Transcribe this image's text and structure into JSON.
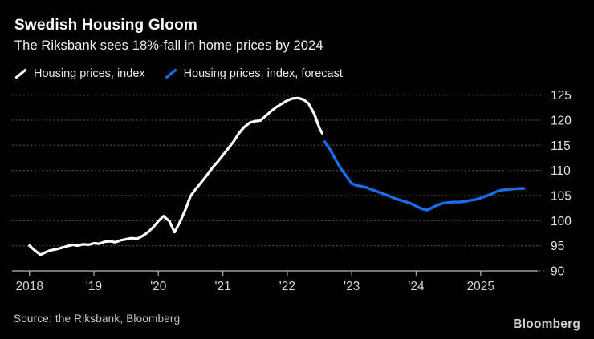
{
  "header": {
    "title": "Swedish Housing Gloom",
    "subtitle": "The Riksbank sees 18%-fall in home prices by 2024"
  },
  "footer": {
    "source": "Source: the Riksbank, Bloomberg",
    "brand": "Bloomberg"
  },
  "colors": {
    "background": "#000000",
    "actual_line": "#ffffff",
    "forecast_line": "#1a6ce8",
    "grid_line": "#585858",
    "axis_line": "#9b9b9b",
    "x_tick_label": "#d6d6d6",
    "y_tick_label": "#e2e2e2"
  },
  "chart_data": {
    "type": "line",
    "title": "Swedish Housing Gloom",
    "subtitle": "The Riksbank sees 18%-fall in home prices by 2024",
    "grid": "horizontal-dotted",
    "legend_position": "top-left",
    "x_axis": {
      "tick_years": [
        2018,
        2019,
        2020,
        2021,
        2022,
        2023,
        2024,
        2025
      ],
      "tick_labels": [
        "2018",
        "'19",
        "'20",
        "'21",
        "'22",
        "'23",
        "'24",
        "2025"
      ],
      "range": [
        2017.73,
        2025.95
      ]
    },
    "y_axis": {
      "ticks": [
        125,
        120,
        115,
        110,
        105,
        100,
        95,
        90
      ],
      "baseline": 90,
      "side": "right",
      "range": [
        90,
        127
      ]
    },
    "series": [
      {
        "name": "Housing prices, index",
        "color": "#ffffff",
        "points": [
          [
            2018.0,
            95.0
          ],
          [
            2018.08,
            94.1
          ],
          [
            2018.17,
            93.2
          ],
          [
            2018.25,
            93.7
          ],
          [
            2018.33,
            94.1
          ],
          [
            2018.42,
            94.3
          ],
          [
            2018.5,
            94.6
          ],
          [
            2018.58,
            94.9
          ],
          [
            2018.67,
            95.2
          ],
          [
            2018.75,
            95.0
          ],
          [
            2018.83,
            95.3
          ],
          [
            2018.92,
            95.2
          ],
          [
            2019.0,
            95.5
          ],
          [
            2019.08,
            95.4
          ],
          [
            2019.17,
            95.8
          ],
          [
            2019.25,
            95.9
          ],
          [
            2019.33,
            95.7
          ],
          [
            2019.42,
            96.1
          ],
          [
            2019.5,
            96.3
          ],
          [
            2019.58,
            96.5
          ],
          [
            2019.67,
            96.4
          ],
          [
            2019.75,
            96.9
          ],
          [
            2019.83,
            97.6
          ],
          [
            2019.92,
            98.7
          ],
          [
            2020.0,
            99.9
          ],
          [
            2020.08,
            100.9
          ],
          [
            2020.17,
            99.9
          ],
          [
            2020.25,
            97.7
          ],
          [
            2020.33,
            99.6
          ],
          [
            2020.42,
            102.2
          ],
          [
            2020.5,
            104.9
          ],
          [
            2020.58,
            106.3
          ],
          [
            2020.67,
            107.7
          ],
          [
            2020.75,
            109.0
          ],
          [
            2020.83,
            110.4
          ],
          [
            2020.92,
            111.7
          ],
          [
            2021.0,
            113.0
          ],
          [
            2021.08,
            114.3
          ],
          [
            2021.17,
            115.8
          ],
          [
            2021.25,
            117.4
          ],
          [
            2021.33,
            118.6
          ],
          [
            2021.42,
            119.5
          ],
          [
            2021.5,
            119.8
          ],
          [
            2021.58,
            119.9
          ],
          [
            2021.67,
            120.9
          ],
          [
            2021.75,
            121.8
          ],
          [
            2021.83,
            122.6
          ],
          [
            2021.92,
            123.3
          ],
          [
            2022.0,
            123.9
          ],
          [
            2022.08,
            124.3
          ],
          [
            2022.17,
            124.4
          ],
          [
            2022.25,
            124.1
          ],
          [
            2022.33,
            123.3
          ],
          [
            2022.42,
            121.2
          ],
          [
            2022.5,
            118.4
          ],
          [
            2022.54,
            117.4
          ]
        ]
      },
      {
        "name": "Housing prices, index, forecast",
        "color": "#1a6ce8",
        "points": [
          [
            2022.58,
            115.7
          ],
          [
            2022.67,
            114.0
          ],
          [
            2022.75,
            112.1
          ],
          [
            2022.83,
            110.4
          ],
          [
            2022.92,
            108.8
          ],
          [
            2023.0,
            107.4
          ],
          [
            2023.08,
            107.0
          ],
          [
            2023.17,
            106.8
          ],
          [
            2023.25,
            106.5
          ],
          [
            2023.33,
            106.1
          ],
          [
            2023.42,
            105.7
          ],
          [
            2023.5,
            105.3
          ],
          [
            2023.58,
            104.9
          ],
          [
            2023.67,
            104.4
          ],
          [
            2023.75,
            104.1
          ],
          [
            2023.83,
            103.8
          ],
          [
            2023.92,
            103.4
          ],
          [
            2024.0,
            102.9
          ],
          [
            2024.08,
            102.4
          ],
          [
            2024.17,
            102.1
          ],
          [
            2024.25,
            102.6
          ],
          [
            2024.33,
            103.1
          ],
          [
            2024.42,
            103.5
          ],
          [
            2024.5,
            103.6
          ],
          [
            2024.58,
            103.7
          ],
          [
            2024.67,
            103.7
          ],
          [
            2024.75,
            103.8
          ],
          [
            2024.83,
            104.0
          ],
          [
            2024.92,
            104.2
          ],
          [
            2025.0,
            104.5
          ],
          [
            2025.08,
            104.9
          ],
          [
            2025.17,
            105.3
          ],
          [
            2025.25,
            105.8
          ],
          [
            2025.33,
            106.1
          ],
          [
            2025.42,
            106.2
          ],
          [
            2025.5,
            106.3
          ],
          [
            2025.58,
            106.4
          ],
          [
            2025.67,
            106.4
          ]
        ]
      }
    ]
  }
}
